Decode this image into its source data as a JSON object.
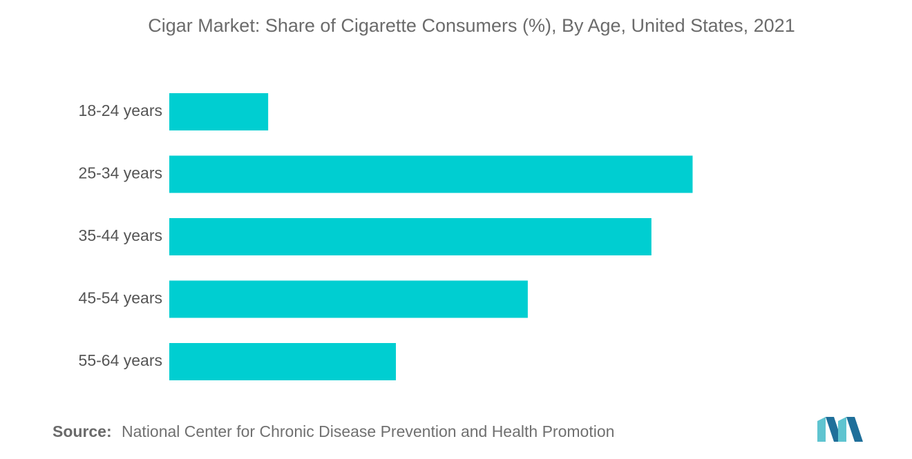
{
  "chart_data": {
    "type": "bar",
    "orientation": "horizontal",
    "title": "Cigar Market: Share of Cigarette Consumers (%), By Age, United States, 2021",
    "categories": [
      "18-24 years",
      "25-34 years",
      "35-44 years",
      "45-54 years",
      "55-64 years"
    ],
    "values": [
      2.4,
      12.7,
      11.7,
      8.7,
      5.5
    ],
    "xlim": [
      0,
      14
    ],
    "grid": false,
    "bar_color": "#00CED1",
    "xlabel": "",
    "ylabel": ""
  },
  "source": {
    "label": "Source:",
    "text": "National Center for Chronic Disease Prevention and Health Promotion"
  },
  "colors": {
    "title": "#6b6b6b",
    "label": "#555555",
    "logo_teal": "#5FC4D0",
    "logo_blue": "#1F6F9A"
  }
}
